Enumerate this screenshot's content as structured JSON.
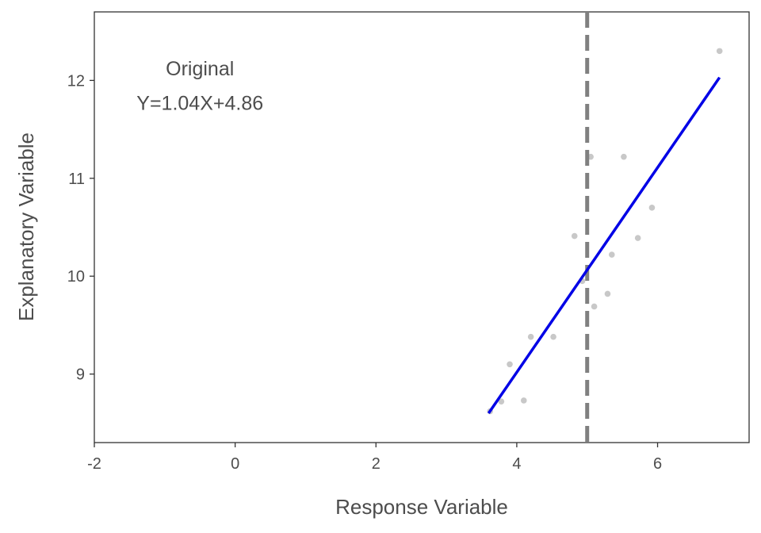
{
  "chart_data": {
    "type": "scatter",
    "xlabel": "Response Variable",
    "ylabel": "Explanatory Variable",
    "xlim": [
      -2.0,
      7.3
    ],
    "ylim": [
      8.3,
      12.7
    ],
    "x_ticks": [
      -2,
      0,
      2,
      4,
      6
    ],
    "y_ticks": [
      9,
      10,
      11,
      12
    ],
    "annotation": {
      "title": "Original",
      "equation": "Y=1.04X+4.86",
      "x": -0.5,
      "y_title": 12.05,
      "y_equation": 11.7
    },
    "vline": {
      "x": 5.0,
      "style": "dashed",
      "color": "#808080"
    },
    "points": [
      {
        "x": 3.62,
        "y": 8.62
      },
      {
        "x": 3.78,
        "y": 8.72
      },
      {
        "x": 3.9,
        "y": 9.1
      },
      {
        "x": 4.1,
        "y": 8.73
      },
      {
        "x": 4.2,
        "y": 9.38
      },
      {
        "x": 4.52,
        "y": 9.38
      },
      {
        "x": 4.82,
        "y": 10.41
      },
      {
        "x": 4.93,
        "y": 9.95
      },
      {
        "x": 5.05,
        "y": 11.22
      },
      {
        "x": 5.1,
        "y": 9.69
      },
      {
        "x": 5.29,
        "y": 9.82
      },
      {
        "x": 5.35,
        "y": 10.22
      },
      {
        "x": 5.52,
        "y": 11.22
      },
      {
        "x": 5.72,
        "y": 10.39
      },
      {
        "x": 5.92,
        "y": 10.7
      },
      {
        "x": 6.88,
        "y": 12.3
      }
    ],
    "fit_line": {
      "x_start": 3.6,
      "y_start": 8.6,
      "x_end": 6.88,
      "y_end": 12.03
    },
    "colors": {
      "points": "#c8c8c8",
      "fit_line": "#0000e6",
      "axis": "#333333"
    },
    "grid": false
  }
}
